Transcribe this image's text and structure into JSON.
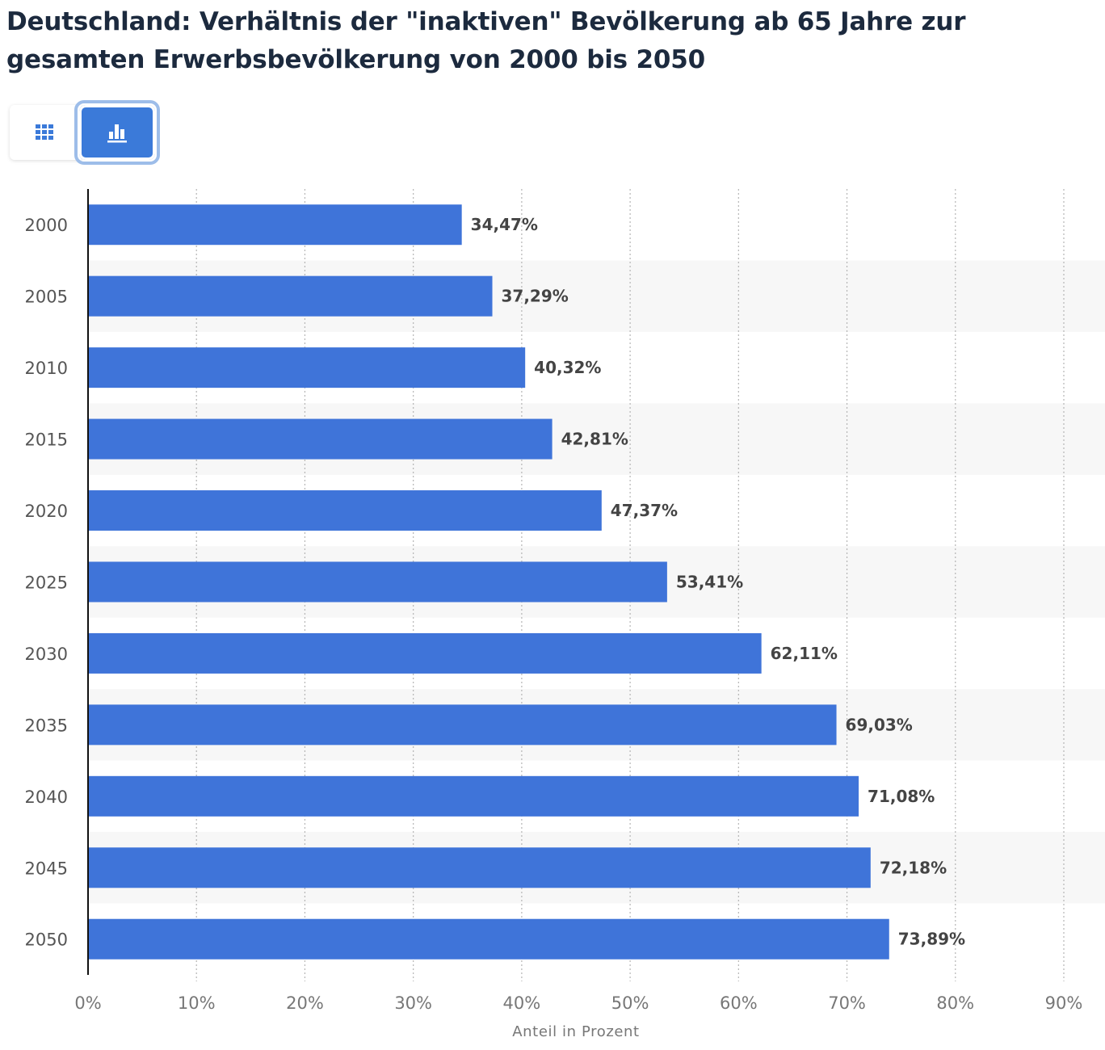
{
  "title": "Deutschland: Verhältnis der \"inaktiven\" Bevölkerung ab 65 Jahre zur gesamten Erwerbsbevölkerung von 2000 bis 2050",
  "view_toggle": {
    "table_icon": "grid-table-icon",
    "chart_icon": "bar-chart-icon",
    "active": "chart"
  },
  "colors": {
    "bar": "#3f74d9",
    "title": "#1c2a3e",
    "active_toggle": "#3b7ad9",
    "band": "#f7f7f7"
  },
  "chart_data": {
    "type": "bar",
    "orientation": "horizontal",
    "categories": [
      "2000",
      "2005",
      "2010",
      "2015",
      "2020",
      "2025",
      "2030",
      "2035",
      "2040",
      "2045",
      "2050"
    ],
    "values": [
      34.47,
      37.29,
      40.32,
      42.81,
      47.37,
      53.41,
      62.11,
      69.03,
      71.08,
      72.18,
      73.89
    ],
    "value_labels": [
      "34,47%",
      "37,29%",
      "40,32%",
      "42,81%",
      "47,37%",
      "53,41%",
      "62,11%",
      "69,03%",
      "71,08%",
      "72,18%",
      "73,89%"
    ],
    "xlabel": "Anteil in Prozent",
    "ylabel": "",
    "xlim": [
      0,
      90
    ],
    "x_ticks": [
      0,
      10,
      20,
      30,
      40,
      50,
      60,
      70,
      80,
      90
    ],
    "x_tick_labels": [
      "0%",
      "10%",
      "20%",
      "30%",
      "40%",
      "50%",
      "60%",
      "70%",
      "80%",
      "90%"
    ],
    "grid": true,
    "grid_style": "dotted vertical",
    "legend": false
  }
}
